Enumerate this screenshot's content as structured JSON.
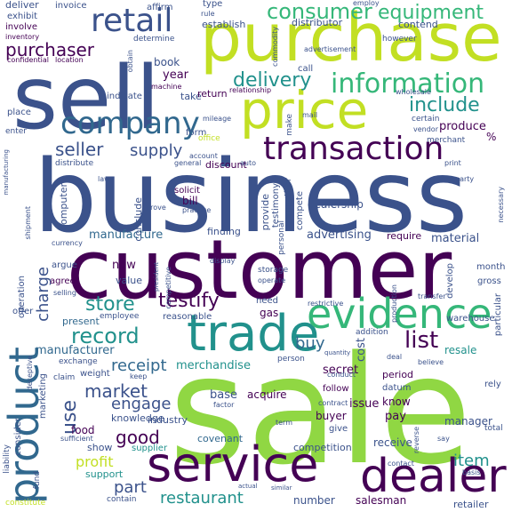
{
  "palette": {
    "dark_purple": "#440154",
    "indigo": "#3b528b",
    "slate_blue": "#31688e",
    "teal": "#21918c",
    "green": "#35b779",
    "lime": "#90d743",
    "yellow": "#c2df23"
  },
  "words": {
    "sale": "sale",
    "business": "business",
    "customer": "customer",
    "sell": "sell",
    "purchase": "purchase",
    "price": "price",
    "service": "service",
    "trade": "trade",
    "evidence": "evidence",
    "dealer": "dealer",
    "product": "product",
    "company": "company",
    "retail": "retail",
    "transaction": "transaction",
    "information": "information",
    "consumer": "consumer",
    "equipment": "equipment",
    "delivery": "delivery",
    "include": "include",
    "purchaser": "purchaser",
    "seller": "seller",
    "supply": "supply",
    "record": "record",
    "store": "store",
    "testify": "testify",
    "list": "list",
    "market": "market",
    "engage": "engage",
    "good": "good",
    "receipt": "receipt",
    "buy": "buy",
    "use": "use",
    "charge": "charge",
    "manufacture": "manufacture",
    "profit": "profit",
    "part": "part",
    "restaurant": "restaurant",
    "item": "item",
    "merchandise": "merchandise",
    "advertising": "advertising",
    "material": "material",
    "manufacturer": "manufacturer",
    "present": "present",
    "new": "new",
    "value": "value",
    "base": "base",
    "acquire": "acquire",
    "secret": "secret",
    "issue": "issue",
    "buyer": "buyer",
    "pay": "pay",
    "manager": "manager",
    "food": "food",
    "know": "know",
    "knowledge": "knowledge",
    "industry": "industry",
    "show": "show",
    "covenant": "covenant",
    "supplier": "supplier",
    "support": "support",
    "competition": "competition",
    "receive": "receive",
    "number": "number",
    "salesman": "salesman",
    "retailer": "retailer",
    "deliver": "deliver",
    "exhibit": "exhibit",
    "involve": "involve",
    "invoice": "invoice",
    "affirm": "affirm",
    "type": "type",
    "rule": "rule",
    "establish": "establish",
    "distributor": "distributor",
    "contend": "contend",
    "employ": "employ",
    "however": "however",
    "determine": "determine",
    "inventory": "inventory",
    "confidential": "confidential",
    "location": "location",
    "obtain": "obtain",
    "book": "book",
    "year": "year",
    "take": "take",
    "return": "return",
    "indicate": "indicate",
    "machine": "machine",
    "call": "call",
    "relationship": "relationship",
    "wholesale": "wholesale",
    "place": "place",
    "enter": "enter",
    "mileage": "mileage",
    "form": "form",
    "office": "office",
    "make": "make",
    "mail": "mail",
    "certain": "certain",
    "vendor": "vendor",
    "merchant": "merchant",
    "produce": "produce",
    "percent": "%",
    "distribute": "distribute",
    "account": "account",
    "general": "general",
    "discount": "discount",
    "manufacturing": "manufacturing",
    "law": "law",
    "solicit": "solicit",
    "bill": "bill",
    "practice": "practice",
    "computer": "computer",
    "conclude": "conclude",
    "prove": "prove",
    "dealership": "dealership",
    "provide": "provide",
    "testimony": "testimony",
    "competitor": "competitor",
    "compete": "compete",
    "necessary": "necessary",
    "print": "print",
    "party": "party",
    "shipment": "shipment",
    "currency": "currency",
    "finding": "finding",
    "require": "require",
    "personal": "personal",
    "argue": "argue",
    "agree": "agree",
    "operation": "operation",
    "selling": "selling",
    "offer": "offer",
    "president": "president",
    "competitive": "competitive",
    "display": "display",
    "storage": "storage",
    "operate": "operate",
    "develop": "develop",
    "month": "month",
    "gross": "gross",
    "employee": "employee",
    "reasonable": "reasonable",
    "need": "need",
    "gas": "gas",
    "addition": "addition",
    "restrictive": "restrictive",
    "production": "production",
    "transfer": "transfer",
    "warehouse": "warehouse",
    "particular": "particular",
    "resale": "resale",
    "cost": "cost",
    "deal": "deal",
    "believe": "believe",
    "exchange": "exchange",
    "weight": "weight",
    "keep": "keep",
    "claim": "claim",
    "marketing": "marketing",
    "deceptive": "deceptive",
    "person": "person",
    "quantity": "quantity",
    "conduct": "conduct",
    "follow": "follow",
    "factor": "factor",
    "period": "period",
    "datum": "datum",
    "rely": "rely",
    "term": "term",
    "contract": "contract",
    "give": "give",
    "sufficient": "sufficient",
    "consider": "consider",
    "liability": "liability",
    "fund": "fund",
    "contain": "contain",
    "actual": "actual",
    "similar": "similar",
    "contact": "contact",
    "basis": "basis",
    "say": "say",
    "total": "total",
    "reverse": "reverse",
    "constitute": "constitute",
    "auto": "auto",
    "commodity": "commodity",
    "advertisement": "advertisement"
  }
}
